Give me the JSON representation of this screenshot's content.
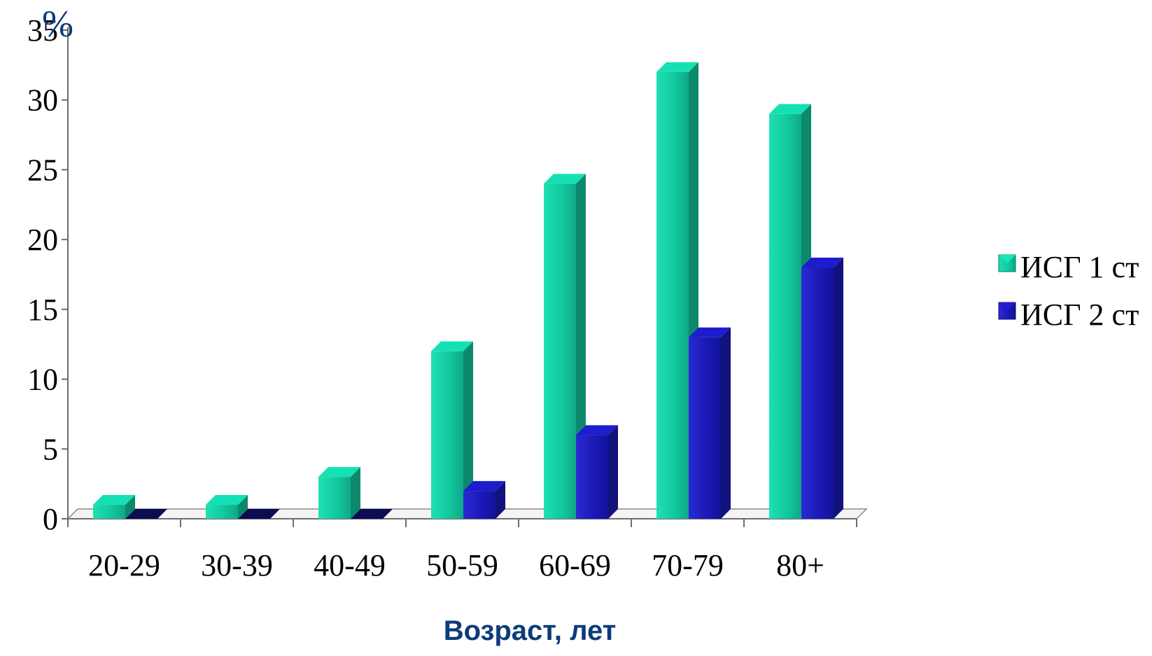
{
  "chart_data": {
    "type": "bar",
    "categories": [
      "20-29",
      "30-39",
      "40-49",
      "50-59",
      "60-69",
      "70-79",
      "80+"
    ],
    "series": [
      {
        "name": "ИСГ 1 ст",
        "values": [
          1,
          1,
          3,
          12,
          24,
          32,
          29
        ],
        "color": "#12c9a0"
      },
      {
        "name": "ИСГ 2 ст",
        "values": [
          0,
          0,
          0,
          2,
          6,
          13,
          18
        ],
        "color": "#1a1ab8"
      }
    ],
    "y_unit": "%",
    "xlabel": "Возраст,  лет",
    "ylim": [
      0,
      35
    ],
    "yticks": [
      0,
      5,
      10,
      15,
      20,
      25,
      30,
      35
    ],
    "grid": false,
    "legend_position": "right",
    "style": "3d-columns"
  }
}
